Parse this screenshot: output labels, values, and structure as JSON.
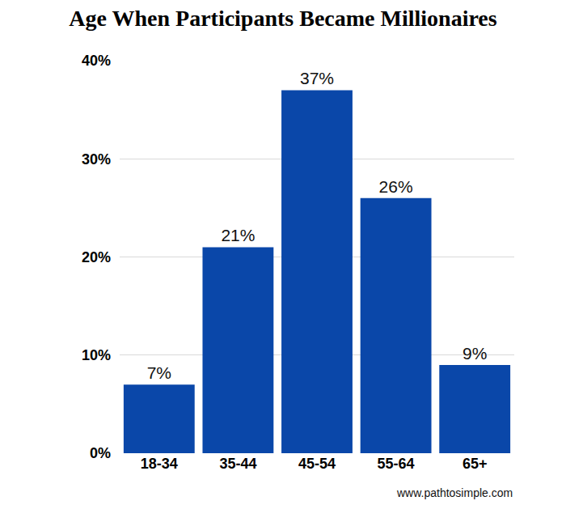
{
  "chart_data": {
    "type": "bar",
    "title": "Age When Participants Became Millionaires",
    "categories": [
      "18-34",
      "35-44",
      "45-54",
      "55-64",
      "65+"
    ],
    "values": [
      7,
      21,
      37,
      26,
      9
    ],
    "value_labels": [
      "7%",
      "21%",
      "37%",
      "26%",
      "9%"
    ],
    "data_labels": true,
    "color": "#0a47a9",
    "ylim": [
      0,
      40
    ],
    "yticks": [
      {
        "value": 0,
        "label": "0%"
      },
      {
        "value": 10,
        "label": "10%"
      },
      {
        "value": 20,
        "label": "20%"
      },
      {
        "value": 30,
        "label": "30%"
      },
      {
        "value": 40,
        "label": "40%"
      }
    ],
    "grid": true,
    "annotations": [
      "www.pathtosimple.com"
    ]
  }
}
